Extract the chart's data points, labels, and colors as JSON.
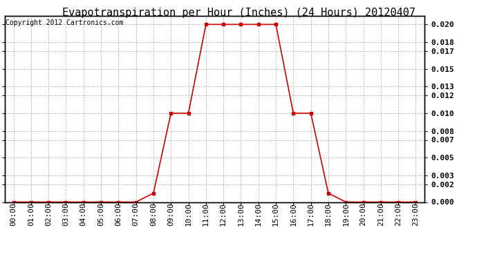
{
  "title": "Evapotranspiration per Hour (Inches) (24 Hours) 20120407",
  "copyright": "Copyright 2012 Cartronics.com",
  "hours": [
    0,
    1,
    2,
    3,
    4,
    5,
    6,
    7,
    8,
    9,
    10,
    11,
    12,
    13,
    14,
    15,
    16,
    17,
    18,
    19,
    20,
    21,
    22,
    23
  ],
  "values": [
    0.0,
    0.0,
    0.0,
    0.0,
    0.0,
    0.0,
    0.0,
    0.0,
    0.001,
    0.01,
    0.01,
    0.02,
    0.02,
    0.02,
    0.02,
    0.02,
    0.01,
    0.01,
    0.001,
    0.0,
    0.0,
    0.0,
    0.0,
    0.0
  ],
  "x_labels": [
    "00:00",
    "01:00",
    "02:00",
    "03:00",
    "04:00",
    "05:00",
    "06:00",
    "07:00",
    "08:00",
    "09:00",
    "10:00",
    "11:00",
    "12:00",
    "13:00",
    "14:00",
    "15:00",
    "16:00",
    "17:00",
    "18:00",
    "19:00",
    "20:00",
    "21:00",
    "22:00",
    "23:00"
  ],
  "y_ticks": [
    0.0,
    0.002,
    0.003,
    0.005,
    0.007,
    0.008,
    0.01,
    0.012,
    0.013,
    0.015,
    0.017,
    0.018,
    0.02
  ],
  "ylim": [
    0.0,
    0.021
  ],
  "line_color": "#cc0000",
  "marker": "s",
  "marker_size": 3,
  "grid_color": "#bbbbbb",
  "bg_color": "#ffffff",
  "title_fontsize": 11,
  "copyright_fontsize": 7,
  "tick_fontsize": 8
}
